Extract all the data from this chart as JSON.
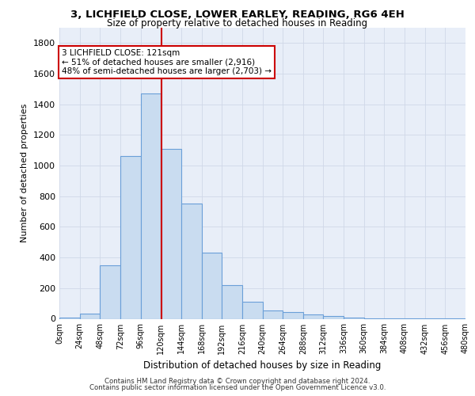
{
  "title_line1": "3, LICHFIELD CLOSE, LOWER EARLEY, READING, RG6 4EH",
  "title_line2": "Size of property relative to detached houses in Reading",
  "xlabel": "Distribution of detached houses by size in Reading",
  "ylabel": "Number of detached properties",
  "bar_left_edges": [
    0,
    24,
    48,
    72,
    96,
    120,
    144,
    168,
    192,
    216,
    240,
    264,
    288,
    312,
    336,
    360,
    384,
    408,
    432,
    456
  ],
  "bar_heights": [
    10,
    35,
    350,
    1060,
    1470,
    1110,
    750,
    430,
    220,
    110,
    55,
    45,
    30,
    20,
    10,
    5,
    3,
    2,
    1,
    1
  ],
  "bin_width": 24,
  "bar_facecolor": "#c9dcf0",
  "bar_edgecolor": "#6a9fd8",
  "property_size": 121,
  "vline_color": "#cc0000",
  "annotation_text": "3 LICHFIELD CLOSE: 121sqm\n← 51% of detached houses are smaller (2,916)\n48% of semi-detached houses are larger (2,703) →",
  "annotation_box_color": "#cc0000",
  "ylim": [
    0,
    1900
  ],
  "yticks": [
    0,
    200,
    400,
    600,
    800,
    1000,
    1200,
    1400,
    1600,
    1800
  ],
  "xtick_labels": [
    "0sqm",
    "24sqm",
    "48sqm",
    "72sqm",
    "96sqm",
    "120sqm",
    "144sqm",
    "168sqm",
    "192sqm",
    "216sqm",
    "240sqm",
    "264sqm",
    "288sqm",
    "312sqm",
    "336sqm",
    "360sqm",
    "384sqm",
    "408sqm",
    "432sqm",
    "456sqm",
    "480sqm"
  ],
  "grid_color": "#d0d8e8",
  "bg_color": "#e8eef8",
  "footer_line1": "Contains HM Land Registry data © Crown copyright and database right 2024.",
  "footer_line2": "Contains public sector information licensed under the Open Government Licence v3.0."
}
